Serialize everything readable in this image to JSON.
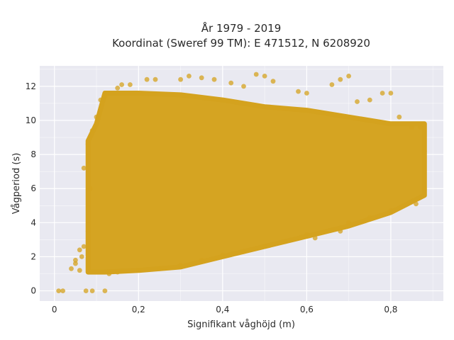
{
  "chart_data": {
    "type": "scatter",
    "title_line1": "År 1979 - 2019",
    "title_line2": "Koordinat (Sweref 99 TM): E 471512, N 6208920",
    "xlabel": "Signifikant våghöjd (m)",
    "ylabel": "Vågperiod (s)",
    "xlim": [
      -0.035,
      0.925
    ],
    "ylim": [
      -0.6,
      13.2
    ],
    "x_ticks": [
      0,
      0.2,
      0.4,
      0.6,
      0.8
    ],
    "x_tick_labels": [
      "0",
      "0,2",
      "0,4",
      "0,6",
      "0,8"
    ],
    "y_ticks": [
      0,
      2,
      4,
      6,
      8,
      10,
      12
    ],
    "y_tick_labels": [
      "0",
      "2",
      "4",
      "6",
      "8",
      "10",
      "12"
    ],
    "grid": true,
    "legend": "none",
    "colors": {
      "marker": "#D4A21E",
      "plot_background": "#E9E9F1",
      "grid": "#ffffff",
      "page_background": "#ffffff"
    },
    "density_envelope": {
      "x": [
        0.08,
        0.1,
        0.12,
        0.2,
        0.3,
        0.4,
        0.5,
        0.6,
        0.7,
        0.8,
        0.88
      ],
      "y_min": [
        1.1,
        1.1,
        1.1,
        1.2,
        1.4,
        2.0,
        2.6,
        3.2,
        3.8,
        4.6,
        5.6
      ],
      "y_max": [
        8.8,
        9.8,
        11.6,
        11.6,
        11.5,
        11.2,
        10.8,
        10.6,
        10.2,
        9.8,
        9.8
      ]
    },
    "series": [
      {
        "values": [
          [
            0.01,
            0.0
          ],
          [
            0.02,
            0.0
          ],
          [
            0.075,
            0.0
          ],
          [
            0.09,
            0.0
          ],
          [
            0.12,
            0.0
          ],
          [
            0.04,
            1.3
          ],
          [
            0.05,
            1.6
          ],
          [
            0.06,
            1.2
          ],
          [
            0.065,
            2.0
          ],
          [
            0.07,
            2.6
          ],
          [
            0.07,
            7.2
          ],
          [
            0.08,
            3.5
          ],
          [
            0.08,
            8.6
          ],
          [
            0.085,
            6.0
          ],
          [
            0.09,
            9.4
          ],
          [
            0.1,
            10.2
          ],
          [
            0.11,
            11.2
          ],
          [
            0.12,
            11.4
          ],
          [
            0.15,
            11.9
          ],
          [
            0.16,
            12.1
          ],
          [
            0.18,
            12.1
          ],
          [
            0.22,
            12.4
          ],
          [
            0.24,
            12.4
          ],
          [
            0.3,
            12.4
          ],
          [
            0.32,
            12.6
          ],
          [
            0.35,
            12.5
          ],
          [
            0.38,
            12.4
          ],
          [
            0.42,
            12.2
          ],
          [
            0.45,
            12.0
          ],
          [
            0.48,
            12.7
          ],
          [
            0.5,
            12.6
          ],
          [
            0.52,
            12.3
          ],
          [
            0.58,
            11.7
          ],
          [
            0.6,
            11.6
          ],
          [
            0.66,
            12.1
          ],
          [
            0.68,
            12.4
          ],
          [
            0.7,
            12.6
          ],
          [
            0.72,
            11.1
          ],
          [
            0.75,
            11.2
          ],
          [
            0.78,
            11.6
          ],
          [
            0.8,
            11.6
          ],
          [
            0.82,
            10.2
          ],
          [
            0.85,
            9.6
          ],
          [
            0.87,
            9.6
          ],
          [
            0.88,
            8.2
          ],
          [
            0.6,
            3.3
          ],
          [
            0.68,
            3.5
          ],
          [
            0.7,
            4.0
          ],
          [
            0.75,
            4.3
          ],
          [
            0.8,
            4.7
          ],
          [
            0.86,
            5.1
          ],
          [
            0.88,
            6.0
          ],
          [
            0.13,
            1.0
          ],
          [
            0.15,
            1.1
          ],
          [
            0.2,
            1.2
          ],
          [
            0.25,
            1.3
          ],
          [
            0.3,
            1.5
          ],
          [
            0.35,
            1.8
          ],
          [
            0.4,
            2.1
          ],
          [
            0.45,
            2.3
          ],
          [
            0.5,
            2.6
          ],
          [
            0.55,
            2.9
          ],
          [
            0.62,
            3.1
          ],
          [
            0.05,
            1.8
          ],
          [
            0.06,
            2.4
          ]
        ]
      }
    ]
  }
}
